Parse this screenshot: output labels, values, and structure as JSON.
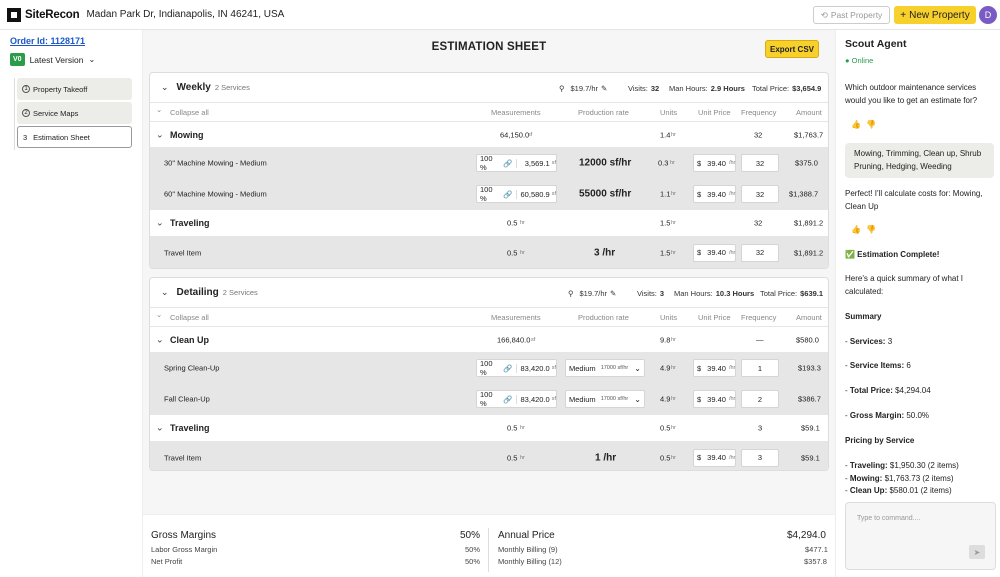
{
  "topbar": {
    "logo": "SiteRecon",
    "address": "Madan Park Dr, Indianapolis, IN 46241, USA",
    "past_property": "Past Property",
    "new_property": "New Property",
    "avatar_initial": "D"
  },
  "left": {
    "order": "Order Id: 1128171",
    "version_badge": "V0",
    "version_label": "Latest Version",
    "steps": [
      {
        "num": "1",
        "label": "Property Takeoff"
      },
      {
        "num": "2",
        "label": "Service Maps"
      },
      {
        "num": "3",
        "label": "Estimation Sheet"
      }
    ]
  },
  "main": {
    "title": "ESTIMATION SHEET",
    "export": "Export CSV",
    "cols": {
      "collapse": "Collapse all",
      "measurements": "Measurements",
      "production": "Production rate",
      "units": "Units",
      "unit_price": "Unit Price",
      "frequency": "Frequency",
      "amount": "Amount"
    },
    "weekly": {
      "name": "Weekly",
      "count": "2 Services",
      "rate": "$19.7/hr",
      "visits_label": "Visits:",
      "visits": "32",
      "hours_label": "Man Hours:",
      "hours": "2.9 Hours",
      "price_label": "Total Price:",
      "price": "$3,654.9",
      "mowing": {
        "name": "Mowing",
        "meas": "64,150.0",
        "meas_unit": "sf",
        "units": "1.4",
        "uunit": "hr",
        "freq": "32",
        "amount": "$1,763.7"
      },
      "items": [
        {
          "name": "30\" Machine Mowing - Medium",
          "pct": "100 %",
          "area": "3,569.1",
          "area_unit": "sf",
          "rate": "12000 sf/hr",
          "units": "0.3",
          "price": "39.40",
          "freq": "32",
          "amount": "$375.0"
        },
        {
          "name": "60\" Machine Mowing - Medium",
          "pct": "100 %",
          "area": "60,580.9",
          "area_unit": "sf",
          "rate": "55000 sf/hr",
          "units": "1.1",
          "price": "39.40",
          "freq": "32",
          "amount": "$1,388.7"
        }
      ],
      "traveling": {
        "name": "Traveling",
        "meas": "0.5",
        "meas_unit": "hr",
        "units": "1.5",
        "uunit": "hr",
        "freq": "32",
        "amount": "$1,891.2"
      },
      "travel_item": {
        "name": "Travel Item",
        "meas": "0.5",
        "meas_unit": "hr",
        "rate": "3 /hr",
        "units": "1.5",
        "price": "39.40",
        "freq": "32",
        "amount": "$1,891.2"
      }
    },
    "detailing": {
      "name": "Detailing",
      "count": "2 Services",
      "rate": "$19.7/hr",
      "visits_label": "Visits:",
      "visits": "3",
      "hours_label": "Man Hours:",
      "hours": "10.3 Hours",
      "price_label": "Total Price:",
      "price": "$639.1",
      "cleanup": {
        "name": "Clean Up",
        "meas": "166,840.0",
        "meas_unit": "sf",
        "units": "9.8",
        "uunit": "hr",
        "freq": "—",
        "amount": "$580.0"
      },
      "items": [
        {
          "name": "Spring Clean-Up",
          "pct": "100 %",
          "area": "83,420.0",
          "area_unit": "sf",
          "level": "Medium",
          "level_rate": "17000 sf/hr",
          "units": "4.9",
          "price": "39.40",
          "freq": "1",
          "amount": "$193.3"
        },
        {
          "name": "Fall Clean-Up",
          "pct": "100 %",
          "area": "83,420.0",
          "area_unit": "sf",
          "level": "Medium",
          "level_rate": "17000 sf/hr",
          "units": "4.9",
          "price": "39.40",
          "freq": "2",
          "amount": "$386.7"
        }
      ],
      "traveling": {
        "name": "Traveling",
        "meas": "0.5",
        "meas_unit": "hr",
        "units": "0.5",
        "uunit": "hr",
        "freq": "3",
        "amount": "$59.1"
      },
      "travel_item": {
        "name": "Travel Item",
        "meas": "0.5",
        "meas_unit": "hr",
        "rate": "1 /hr",
        "units": "0.5",
        "price": "39.40",
        "freq": "3",
        "amount": "$59.1"
      }
    },
    "hr": "hr",
    "dollar": "$",
    "per_hr": "/hr"
  },
  "bottom": {
    "gm_label": "Gross Margins",
    "gm": "50%",
    "lgm_label": "Labor Gross Margin",
    "lgm": "50%",
    "np_label": "Net Profit",
    "np": "50%",
    "ap_label": "Annual Price",
    "ap": "$4,294.0",
    "mb9_label": "Monthly Billing (9)",
    "mb9": "$477.1",
    "mb12_label": "Monthly Billing (12)",
    "mb12": "$357.8"
  },
  "chat": {
    "title": "Scout Agent",
    "status": "Online",
    "q": "Which outdoor maintenance services would you like to get an estimate for?",
    "user": "Mowing, Trimming, Clean up, Shrub Pruning, Hedging, Weeding",
    "a1": "Perfect! I'll calculate costs for: Mowing, Clean Up",
    "done": "✅ Estimation Complete!",
    "a2": "Here's a quick summary of what I calculated:",
    "summary": "Summary",
    "s1_label": "Services:",
    "s1": "3",
    "s2_label": "Service Items:",
    "s2": "6",
    "s3_label": "Total Price:",
    "s3": "$4,294.04",
    "s4_label": "Gross Margin:",
    "s4": "50.0%",
    "pbs": "Pricing by Service",
    "p1_label": "Traveling:",
    "p1": "$1,950.30 (2 items)",
    "p2_label": "Mowing:",
    "p2": "$1,763.73 (2 items)",
    "p3_label": "Clean Up:",
    "p3": "$580.01 (2 items)",
    "placeholder": "Type to command...."
  },
  "colors": {
    "accent": "#f7d02c",
    "online": "#2a9c4a",
    "link": "#1a57c8",
    "avatar": "#7a5bc4"
  }
}
